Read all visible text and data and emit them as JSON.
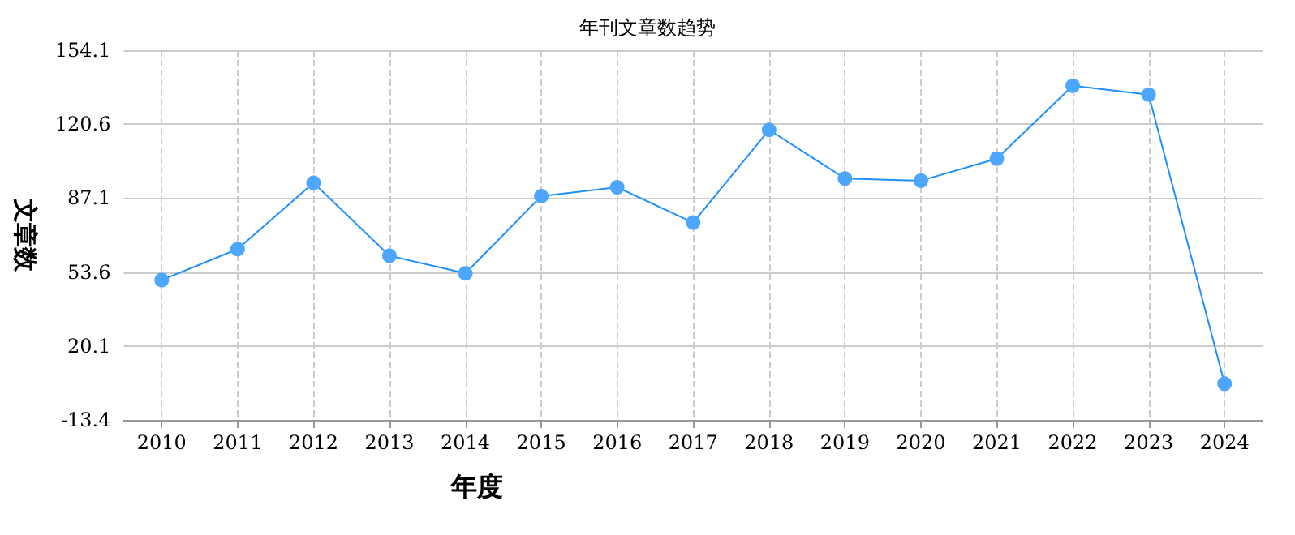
{
  "chart_data": {
    "type": "line",
    "title": "年刊文章数趋势",
    "xlabel": "年度",
    "ylabel": "文章数",
    "categories": [
      "2010",
      "2011",
      "2012",
      "2013",
      "2014",
      "2015",
      "2016",
      "2017",
      "2018",
      "2019",
      "2020",
      "2021",
      "2022",
      "2023",
      "2024"
    ],
    "series": [
      {
        "color": "#4da6ff",
        "values": [
          50,
          64,
          94,
          61,
          53,
          88,
          92,
          76,
          118,
          96,
          95,
          105,
          138,
          134,
          3
        ]
      }
    ],
    "ylim": [
      -13.4,
      154.1
    ],
    "yticks": [
      -13.4,
      20.1,
      53.6,
      87.1,
      120.6,
      154.1
    ],
    "grid": true,
    "marker": "circle",
    "line_style": "solid"
  }
}
